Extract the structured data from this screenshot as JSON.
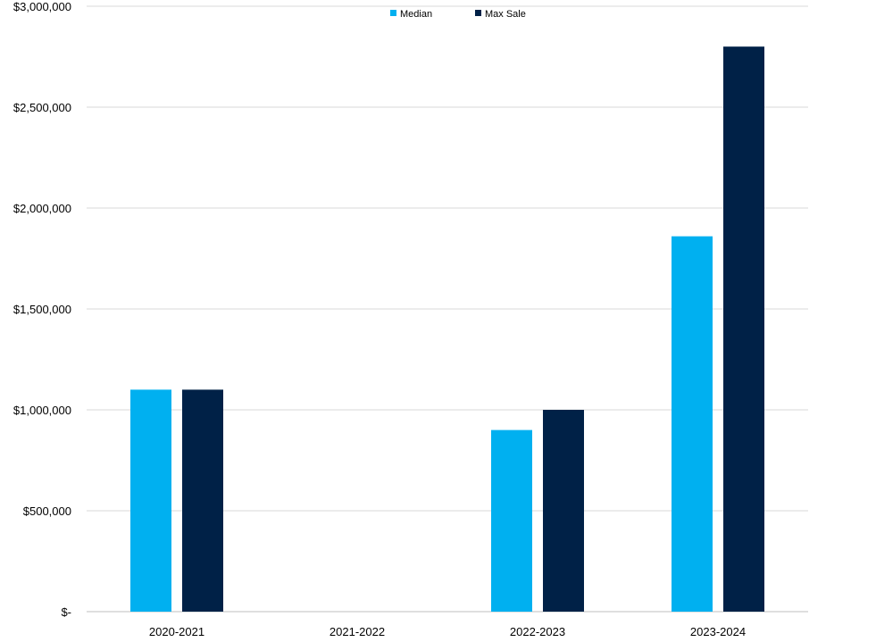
{
  "chart_data": {
    "type": "bar",
    "categories": [
      "2020-2021",
      "2021-2022",
      "2022-2023",
      "2023-2024"
    ],
    "series": [
      {
        "name": "Median",
        "color": "#00B0F0",
        "values": [
          1100000,
          null,
          900000,
          1860000
        ]
      },
      {
        "name": "Max Sale",
        "color": "#002147",
        "values": [
          1100000,
          null,
          1000000,
          2800000
        ]
      }
    ],
    "ylim": [
      0,
      3000000
    ],
    "yticks": [
      0,
      500000,
      1000000,
      1500000,
      2000000,
      2500000,
      3000000
    ],
    "ytick_labels": [
      "$-",
      "$500,000",
      "$1,000,000",
      "$1,500,000",
      "$2,000,000",
      "$2,500,000",
      "$3,000,000"
    ],
    "grid": true,
    "legend_position": "top-center",
    "title": "",
    "xlabel": "",
    "ylabel": ""
  }
}
